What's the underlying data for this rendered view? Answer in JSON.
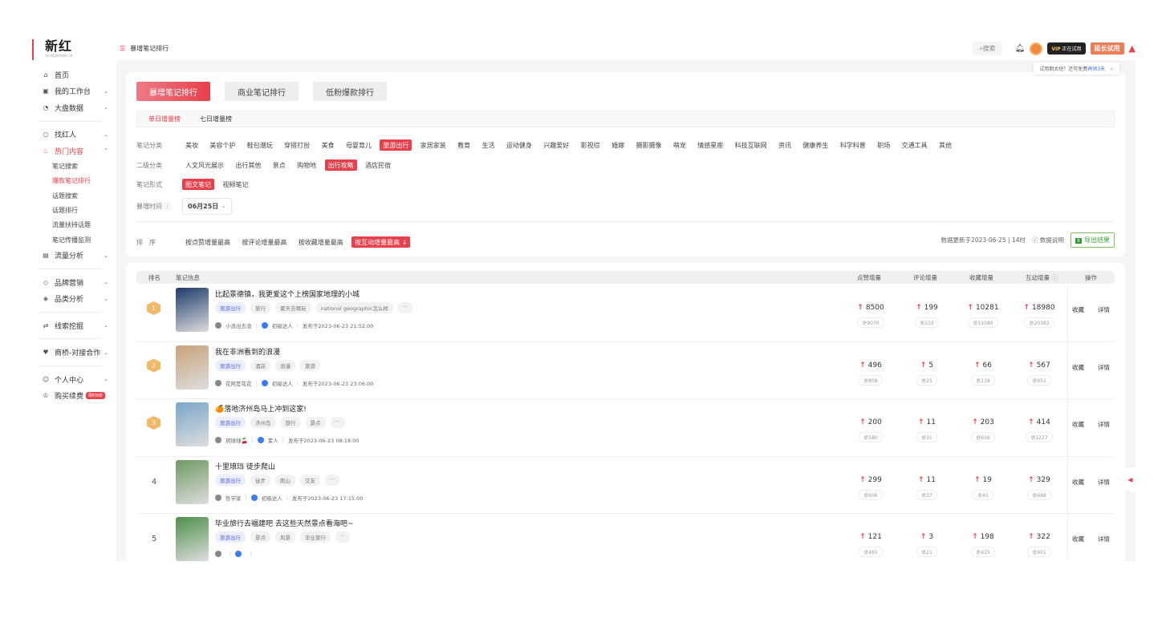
{
  "brand": {
    "logo": "新红",
    "sub": "XH.NEWRANK.CN"
  },
  "sidebar": {
    "items": [
      {
        "label": "首页",
        "icon": "home-icon",
        "glyph": "⌂"
      },
      {
        "label": "我的工作台",
        "icon": "workbench-icon",
        "glyph": "▣",
        "chev": "⌄"
      },
      {
        "label": "大盘数据",
        "icon": "dashboard-icon",
        "glyph": "◔",
        "chev": "⌄",
        "sep": true
      },
      {
        "label": "找红人",
        "icon": "search-icon",
        "glyph": "○",
        "chev": "⌄"
      },
      {
        "label": "热门内容",
        "icon": "fire-icon",
        "glyph": "♨",
        "chev": "⌃",
        "active": true,
        "children": [
          {
            "label": "笔记搜索"
          },
          {
            "label": "爆款笔记排行",
            "active": true
          },
          {
            "label": "话题搜索"
          },
          {
            "label": "话题排行"
          },
          {
            "label": "流量扶持话题"
          },
          {
            "label": "笔记传播监测"
          }
        ]
      },
      {
        "label": "流量分析",
        "icon": "chart-icon",
        "glyph": "▤",
        "chev": "⌄",
        "sep": true
      },
      {
        "label": "品牌营销",
        "icon": "brand-icon",
        "glyph": "◇",
        "chev": "⌄"
      },
      {
        "label": "品类分析",
        "icon": "tag-icon",
        "glyph": "◈",
        "chev": "⌄",
        "sep": true
      },
      {
        "label": "线索挖掘",
        "icon": "swap-icon",
        "glyph": "⇄",
        "chev": "⌄",
        "sep": true
      },
      {
        "label": "商桥-对接合作",
        "icon": "heart-icon",
        "glyph": "♥",
        "chev": "⌄",
        "sep": true
      },
      {
        "label": "个人中心",
        "icon": "user-icon",
        "glyph": "☺",
        "chev": "⌄"
      },
      {
        "label": "购买续费",
        "icon": "crown-icon",
        "glyph": "♔",
        "badge": "限时8折"
      }
    ]
  },
  "header": {
    "breadcrumb": "暴增笔记排行",
    "search": "搜索",
    "vip_label": "VIP",
    "vip_status": "正在试用",
    "extend": "延长试用",
    "tip": "试用期太短？还可免费",
    "tip_link": "再领3天",
    "tip_close": "×"
  },
  "main_tabs": [
    {
      "label": "暴增笔记排行",
      "active": true
    },
    {
      "label": "商业笔记排行"
    },
    {
      "label": "低粉爆款排行"
    }
  ],
  "sub_tabs": [
    {
      "label": "单日增量榜",
      "active": true
    },
    {
      "label": "七日增量榜"
    }
  ],
  "filters": {
    "category": {
      "label": "笔记分类",
      "options": [
        "美妆",
        "美容个护",
        "鞋包潮玩",
        "穿搭打扮",
        "美食",
        "母婴育儿",
        "旅游出行",
        "家居家装",
        "教育",
        "生活",
        "运动健身",
        "兴趣爱好",
        "影视综",
        "婚嫁",
        "摄影摄像",
        "萌宠",
        "情感星座",
        "科技互联网",
        "资讯",
        "健康养生",
        "科学科普",
        "职场",
        "交通工具",
        "其他"
      ],
      "selected": "旅游出行"
    },
    "subcategory": {
      "label": "二级分类",
      "options": [
        "人文风光展示",
        "出行其他",
        "景点",
        "购物地",
        "出行攻略",
        "酒店民宿"
      ],
      "selected": "出行攻略"
    },
    "format": {
      "label": "笔记形式",
      "options": [
        "图文笔记",
        "视频笔记"
      ],
      "selected": "图文笔记"
    },
    "time": {
      "label": "暴增时间",
      "value": "06月25日"
    },
    "sort": {
      "label": "排　序",
      "options": [
        "按点赞增量最高",
        "按评论增量最高",
        "按收藏增量最高",
        "按互动增量最高 ↓"
      ],
      "selected": "按互动增量最高 ↓"
    }
  },
  "update_info": {
    "text": "数据更新于2023-06-25 | 14时",
    "explain": "数据说明",
    "export": "导出结果"
  },
  "table": {
    "headers": {
      "rank": "排名",
      "info": "笔记信息",
      "likes": "点赞增量",
      "comments": "评论增量",
      "collects": "收藏增量",
      "interact": "互动增量",
      "ops": "操作"
    },
    "actions": {
      "collect": "收藏",
      "detail": "详情"
    },
    "rows": [
      {
        "rank": "1",
        "medal": true,
        "title": "比起景德镇，我更爱这个上榜国家地理的小城",
        "tags": [
          "旅游出行",
          "旅行",
          "夏天去哪玩",
          "national geographic怎么样",
          "···"
        ],
        "author": "小浪出去浪",
        "level": "初级达人",
        "published": "发布于2023-06-23 21:52:00",
        "likes": "8500",
        "likes_total": "总9070",
        "comments": "199",
        "comments_total": "总233",
        "collects": "10281",
        "collects_total": "总11080",
        "interact": "18980",
        "interact_total": "总20383",
        "thumb": "#1d3a6b"
      },
      {
        "rank": "2",
        "medal": true,
        "title": "我在非洲看到的浪漫",
        "tags": [
          "旅游出行",
          "酒店",
          "浪漫",
          "旅游"
        ],
        "author": "花阿是花花",
        "level": "初级达人",
        "published": "发布于2023-06-23 23:06:00",
        "likes": "496",
        "likes_total": "总808",
        "comments": "5",
        "comments_total": "总25",
        "collects": "66",
        "collects_total": "总118",
        "interact": "567",
        "interact_total": "总951",
        "thumb": "#c9a27a"
      },
      {
        "rank": "3",
        "medal": true,
        "title": "🍊落地济州岛马上冲到这家!",
        "tags": [
          "旅游出行",
          "济州岛",
          "旅行",
          "景点",
          "···"
        ],
        "author": "玥球球🍒",
        "level": "素人",
        "published": "发布于2023-06-23 08:18:00",
        "likes": "200",
        "likes_total": "总580",
        "comments": "11",
        "comments_total": "总31",
        "collects": "203",
        "collects_total": "总616",
        "interact": "414",
        "interact_total": "总1227",
        "thumb": "#7aa6c9"
      },
      {
        "rank": "4",
        "title": "十里琅珰 徒步爬山",
        "tags": [
          "旅游出行",
          "徒步",
          "爬山",
          "交友",
          "···"
        ],
        "author": "哲学家",
        "level": "初级达人",
        "published": "发布于2023-06-23 17:15:00",
        "likes": "299",
        "likes_total": "总606",
        "comments": "11",
        "comments_total": "总37",
        "collects": "19",
        "collects_total": "总45",
        "interact": "329",
        "interact_total": "总688",
        "thumb": "#6f9a63"
      },
      {
        "rank": "5",
        "title": "毕业旅行去福建吧 去这些天然景点看海吧~",
        "tags": [
          "旅游出行",
          "景点",
          "风景",
          "毕业旅行",
          "···"
        ],
        "author": "",
        "level": "",
        "published": "",
        "likes": "121",
        "likes_total": "总465",
        "comments": "3",
        "comments_total": "总21",
        "collects": "198",
        "collects_total": "总415",
        "interact": "322",
        "interact_total": "总901",
        "thumb": "#4d8f4a"
      }
    ]
  },
  "colors": {
    "accent": "#e8404a",
    "tag_blue": "#5566dd",
    "export_green": "#3da33a"
  }
}
